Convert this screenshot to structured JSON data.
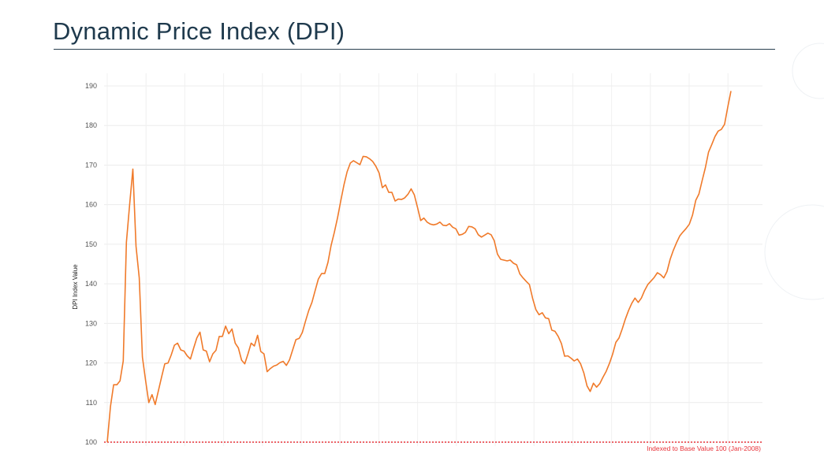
{
  "page": {
    "title": "Dynamic Price Index (DPI)"
  },
  "chart_data": {
    "type": "line",
    "title": "",
    "xlabel": "",
    "ylabel": "DPI Index Value",
    "ylim": [
      100,
      190
    ],
    "yticks": [
      100,
      110,
      120,
      130,
      140,
      150,
      160,
      170,
      180,
      190
    ],
    "grid": true,
    "baseline": {
      "value": 100,
      "label": "Indexed to Base Value 100 (Jan-2008)",
      "color": "#e8333a",
      "style": "dotted"
    },
    "series": [
      {
        "color": "#f07a2a",
        "values": [
          100,
          109,
          114.5,
          114.5,
          115.5,
          120.5,
          150.5,
          160,
          169,
          149.5,
          141.5,
          121.5,
          115.5,
          110,
          112,
          109.5,
          113,
          116.5,
          119.8,
          120,
          122,
          124.5,
          125,
          123.3,
          123,
          121.8,
          121,
          123.7,
          126.3,
          127.8,
          123.3,
          123,
          120.3,
          122.3,
          123.2,
          126.7,
          126.7,
          129.3,
          127.4,
          128.6,
          125,
          123.8,
          120.7,
          119.8,
          122.3,
          125,
          124.3,
          127,
          122.9,
          122.3,
          117.8,
          118.6,
          119.2,
          119.5,
          120.1,
          120.4,
          119.4,
          120.8,
          123.4,
          125.9,
          126.2,
          127.7,
          130.6,
          133.3,
          135.3,
          138.3,
          141.2,
          142.6,
          142.6,
          145.4,
          149.7,
          153,
          156.7,
          160.9,
          165,
          168.3,
          170.5,
          171.1,
          170.6,
          170.1,
          172.2,
          172.1,
          171.6,
          170.9,
          169.7,
          168,
          164.3,
          165,
          163.1,
          163.1,
          160.9,
          161.4,
          161.3,
          161.7,
          162.6,
          164,
          162.5,
          159.3,
          156,
          156.6,
          155.6,
          155.1,
          154.9,
          155.1,
          155.6,
          154.8,
          154.7,
          155.2,
          154.3,
          153.9,
          152.3,
          152.5,
          153,
          154.5,
          154.4,
          153.9,
          152.4,
          151.8,
          152.3,
          152.8,
          152.4,
          150.9,
          147.5,
          146.2,
          146.0,
          145.8,
          146.0,
          145.2,
          144.8,
          142.5,
          141.5,
          140.6,
          139.8,
          136.3,
          133.5,
          132.2,
          132.7,
          131.4,
          131.2,
          128.3,
          128,
          126.7,
          124.9,
          121.7,
          121.8,
          121.2,
          120.5,
          121,
          119.8,
          117.5,
          114.2,
          112.8,
          114.9,
          113.9,
          114.8,
          116.4,
          117.9,
          119.9,
          122.2,
          125.2,
          126.3,
          128.6,
          131.1,
          133.3,
          135.1,
          136.4,
          135.3,
          136.4,
          138.3,
          139.8,
          140.7,
          141.6,
          142.8,
          142.3,
          141.5,
          143.1,
          146.2,
          148.5,
          150.4,
          152.1,
          153.1,
          154,
          155.1,
          157.4,
          161.1,
          162.7,
          166.1,
          169.3,
          173.3,
          175.2,
          177.2,
          178.6,
          179,
          180.3,
          184.6,
          188.7
        ]
      }
    ]
  }
}
